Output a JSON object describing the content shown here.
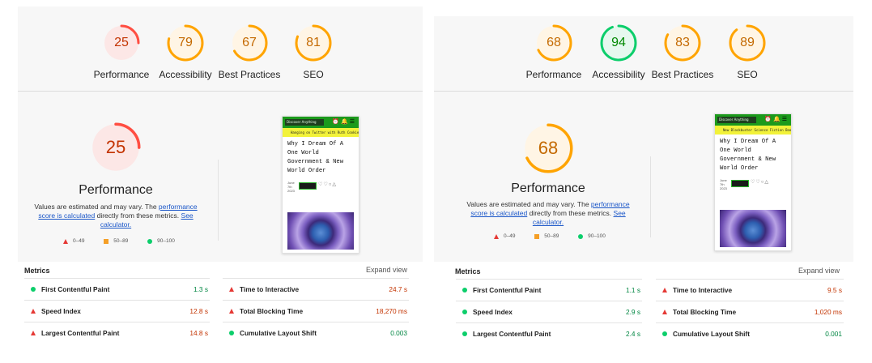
{
  "colors": {
    "fail": "#ff4e42",
    "average": "#ffa400",
    "pass": "#0cce6b",
    "fail_bg": "#fce7e6",
    "average_bg": "#fff5e5",
    "pass_bg": "#e6f8ee"
  },
  "reports": [
    {
      "scores": [
        {
          "label": "Performance",
          "value": "25",
          "rating": "fail"
        },
        {
          "label": "Accessibility",
          "value": "79",
          "rating": "average"
        },
        {
          "label": "Best Practices",
          "value": "67",
          "rating": "average"
        },
        {
          "label": "SEO",
          "value": "81",
          "rating": "average"
        }
      ],
      "main_score": {
        "value": "25",
        "rating": "fail"
      },
      "title": "Performance",
      "desc_prefix": "Values are estimated and may vary. The ",
      "desc_link1": "performance score is calculated",
      "desc_mid": " directly from these metrics. ",
      "desc_link2": "See calculator.",
      "legend": [
        "0–49",
        "50–89",
        "90–100"
      ],
      "screenshot": {
        "search": "Discover Anything",
        "banner": "Hanging on Twitter with Ruth Cookie!",
        "title": "Why I Dream Of A One World Government & New World Order",
        "date": "June 7th 2023",
        "icons": "⏰🔔☰"
      },
      "metrics_head": "Metrics",
      "expand": "Expand view",
      "metrics_left": [
        {
          "name": "First Contentful Paint",
          "value": "1.3 s",
          "rating": "pass"
        },
        {
          "name": "Speed Index",
          "value": "12.8 s",
          "rating": "fail"
        },
        {
          "name": "Largest Contentful Paint",
          "value": "14.8 s",
          "rating": "fail"
        }
      ],
      "metrics_right": [
        {
          "name": "Time to Interactive",
          "value": "24.7 s",
          "rating": "fail"
        },
        {
          "name": "Total Blocking Time",
          "value": "18,270 ms",
          "rating": "fail"
        },
        {
          "name": "Cumulative Layout Shift",
          "value": "0.003",
          "rating": "pass"
        }
      ]
    },
    {
      "scores": [
        {
          "label": "Performance",
          "value": "68",
          "rating": "average"
        },
        {
          "label": "Accessibility",
          "value": "94",
          "rating": "pass"
        },
        {
          "label": "Best Practices",
          "value": "83",
          "rating": "average"
        },
        {
          "label": "SEO",
          "value": "89",
          "rating": "average"
        }
      ],
      "main_score": {
        "value": "68",
        "rating": "average"
      },
      "title": "Performance",
      "desc_prefix": "Values are estimated and may vary. The ",
      "desc_link1": "performance score is calculated",
      "desc_mid": " directly from these metrics. ",
      "desc_link2": "See calculator.",
      "legend": [
        "0–49",
        "50–89",
        "90–100"
      ],
      "screenshot": {
        "search": "Discover Anything",
        "banner": "New Blockbuster Science Fiction Book Launch!",
        "title": "Why I Dream Of A One World Government & New World Order",
        "date": "June 7th 2023",
        "icons": "⏰🔔☰"
      },
      "metrics_head": "Metrics",
      "expand": "Expand view",
      "metrics_left": [
        {
          "name": "First Contentful Paint",
          "value": "1.1 s",
          "rating": "pass"
        },
        {
          "name": "Speed Index",
          "value": "2.9 s",
          "rating": "pass"
        },
        {
          "name": "Largest Contentful Paint",
          "value": "2.4 s",
          "rating": "pass"
        }
      ],
      "metrics_right": [
        {
          "name": "Time to Interactive",
          "value": "9.5 s",
          "rating": "fail"
        },
        {
          "name": "Total Blocking Time",
          "value": "1,020 ms",
          "rating": "fail"
        },
        {
          "name": "Cumulative Layout Shift",
          "value": "0.001",
          "rating": "pass"
        }
      ]
    }
  ]
}
